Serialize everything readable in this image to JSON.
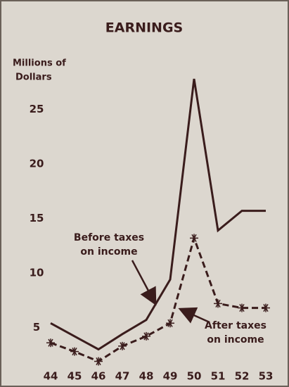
{
  "chart_data": {
    "type": "line",
    "title": "EARNINGS",
    "y_label": [
      "Millions of",
      "Dollars"
    ],
    "categories": [
      "44",
      "45",
      "46",
      "47",
      "48",
      "49",
      "50",
      "51",
      "52",
      "53"
    ],
    "series": [
      {
        "name": [
          "Before taxes",
          "on income"
        ],
        "color": "#3a1c1c",
        "style": "solid",
        "marker": "none",
        "values": [
          5.4,
          4.2,
          3.0,
          4.4,
          5.7,
          9.4,
          27.8,
          13.9,
          15.7,
          15.7
        ]
      },
      {
        "name": [
          "After taxes",
          "on income"
        ],
        "color": "#3a1c1c",
        "style": "dashed",
        "marker": "asterisk",
        "values": [
          3.6,
          2.8,
          1.9,
          3.3,
          4.2,
          5.4,
          13.2,
          7.2,
          6.8,
          6.8
        ]
      }
    ],
    "ylim": [
      0,
      28
    ],
    "yticks": [
      5,
      10,
      15,
      20,
      25
    ],
    "grid": false
  }
}
